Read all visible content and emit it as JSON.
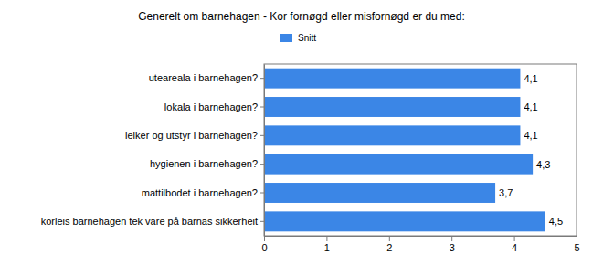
{
  "chart_data": {
    "type": "bar",
    "orientation": "horizontal",
    "title": "Generelt om barnehagen - Kor fornøgd eller misfornøgd er du med:",
    "categories": [
      "uteareala i barnehagen?",
      "lokala i barnehagen?",
      "leiker og utstyr i barnehagen?",
      "hygienen i barnehagen?",
      "mattilbodet i barnehagen?",
      "korleis barnehagen tek vare på barnas sikkerheit"
    ],
    "series": [
      {
        "name": "Snitt",
        "color": "#3b86e6",
        "values": [
          4.1,
          4.1,
          4.1,
          4.3,
          3.7,
          4.5
        ],
        "value_labels": [
          "4,1",
          "4,1",
          "4,1",
          "4,3",
          "3,7",
          "4,5"
        ]
      }
    ],
    "xlim": [
      0,
      5
    ],
    "xticks": [
      0,
      1,
      2,
      3,
      4,
      5
    ],
    "grid": false,
    "legend": "top",
    "data_labels": true
  }
}
